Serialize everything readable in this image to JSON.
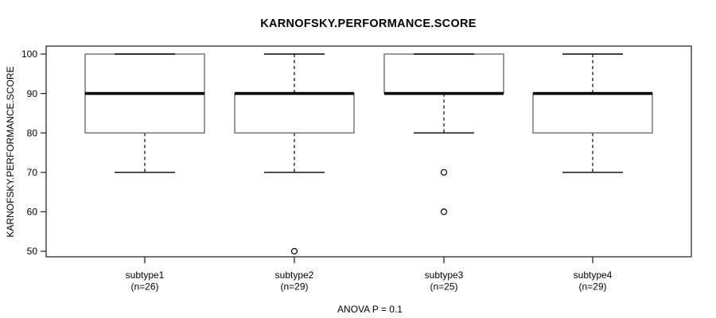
{
  "chart_data": {
    "type": "boxplot",
    "title": "KARNOFSKY.PERFORMANCE.SCORE",
    "ylabel": "KARNOFSKY.PERFORMANCE.SCORE",
    "annotation": "ANOVA P = 0.1",
    "ylim": [
      50,
      100
    ],
    "yticks": [
      50,
      60,
      70,
      80,
      90,
      100
    ],
    "grid": false,
    "legend": "none",
    "groups": [
      {
        "label": "subtype1",
        "n_label": "(n=26)",
        "n": 26,
        "whisker_low": 70,
        "q1": 80,
        "median": 90,
        "q3": 100,
        "whisker_high": 100,
        "outliers": []
      },
      {
        "label": "subtype2",
        "n_label": "(n=29)",
        "n": 29,
        "whisker_low": 70,
        "q1": 80,
        "median": 90,
        "q3": 90,
        "whisker_high": 100,
        "outliers": [
          50
        ]
      },
      {
        "label": "subtype3",
        "n_label": "(n=25)",
        "n": 25,
        "whisker_low": 80,
        "q1": 90,
        "median": 90,
        "q3": 100,
        "whisker_high": 100,
        "outliers": [
          70,
          60
        ]
      },
      {
        "label": "subtype4",
        "n_label": "(n=29)",
        "n": 29,
        "whisker_low": 70,
        "q1": 80,
        "median": 90,
        "q3": 90,
        "whisker_high": 100,
        "outliers": []
      }
    ],
    "colors": {
      "background": "#ffffff",
      "text": "#000000",
      "frame": "#2b2b2b",
      "box_border": "#6e6e6e",
      "box_fill": "#ffffff",
      "median": "#000000",
      "whisker": "#000000",
      "outlier": "#000000"
    }
  }
}
